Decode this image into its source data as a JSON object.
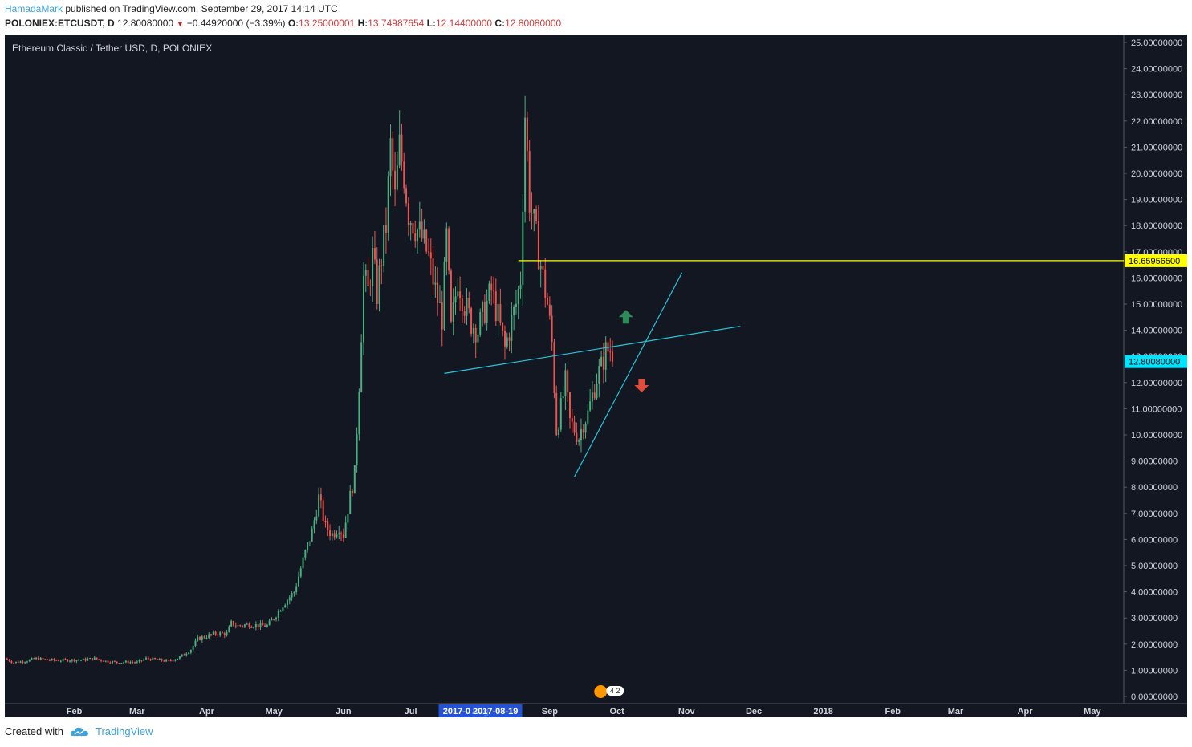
{
  "header": {
    "author": "HamadaMark",
    "published_text": "published on TradingView.com, September 29, 2017 14:14 UTC",
    "symbol": "POLONIEX:ETCUSDT, D",
    "last": "12.80080000",
    "change": "−0.44920000 (−3.39%)",
    "o_label": "O:",
    "o_value": "13.25000001",
    "h_label": "H:",
    "h_value": "13.74987654",
    "l_label": "L:",
    "l_value": "12.14400000",
    "c_label": "C:",
    "c_value": "12.80080000",
    "down_icon": "triangle-down-icon"
  },
  "footer": {
    "created_with": "Created with",
    "brand": "TradingView",
    "logo_icon": "tradingview-cloud-icon"
  },
  "chart_data": {
    "type": "candlestick",
    "title": "Ethereum Classic / Tether USD, D, POLONIEX",
    "ylim": [
      0,
      25
    ],
    "y_ticks": [
      "25.00000000",
      "24.00000000",
      "23.00000000",
      "22.00000000",
      "21.00000000",
      "20.00000000",
      "19.00000000",
      "18.00000000",
      "17.00000000",
      "16.00000000",
      "15.00000000",
      "14.00000000",
      "13.00000000",
      "12.00000000",
      "11.00000000",
      "10.00000000",
      "9.00000000",
      "8.00000000",
      "7.00000000",
      "6.00000000",
      "5.00000000",
      "4.00000000",
      "3.00000000",
      "2.00000000",
      "1.00000000",
      "0.00000000"
    ],
    "x_ticks": [
      "Feb",
      "Mar",
      "Apr",
      "May",
      "Jun",
      "Jul",
      "Aug",
      "Sep",
      "Oct",
      "Nov",
      "Dec",
      "2018",
      "Feb",
      "Mar",
      "Apr",
      "May"
    ],
    "x_tick_dates": [
      "2017-02-01",
      "2017-03-01",
      "2017-04-01",
      "2017-05-01",
      "2017-06-01",
      "2017-07-01",
      "2017-08-01",
      "2017-09-01",
      "2017-10-01",
      "2017-11-01",
      "2017-12-01",
      "2018-01-01",
      "2018-02-01",
      "2018-03-01",
      "2018-04-01",
      "2018-05-01"
    ],
    "x_start": "2017-01-01",
    "x_end": "2018-05-15",
    "crosshair_label": "2017-0   2017-08-19",
    "price_labels": [
      {
        "value": 16.659565,
        "text": "16.65956500",
        "color": "#ffff00"
      },
      {
        "value": 12.8008,
        "text": "12.80080000",
        "color": "#00e5ff"
      }
    ],
    "grid": false,
    "up_color": "#4caf80",
    "down_color": "#ef5350",
    "series": [
      {
        "name": "ETCUSDT",
        "points": [
          [
            "2017-01-01",
            1.45
          ],
          [
            "2017-01-05",
            1.3
          ],
          [
            "2017-01-10",
            1.35
          ],
          [
            "2017-01-15",
            1.45
          ],
          [
            "2017-01-20",
            1.4
          ],
          [
            "2017-01-25",
            1.38
          ],
          [
            "2017-02-01",
            1.4
          ],
          [
            "2017-02-05",
            1.4
          ],
          [
            "2017-02-10",
            1.45
          ],
          [
            "2017-02-15",
            1.35
          ],
          [
            "2017-02-20",
            1.3
          ],
          [
            "2017-02-25",
            1.32
          ],
          [
            "2017-03-01",
            1.3
          ],
          [
            "2017-03-05",
            1.45
          ],
          [
            "2017-03-10",
            1.4
          ],
          [
            "2017-03-15",
            1.35
          ],
          [
            "2017-03-20",
            1.5
          ],
          [
            "2017-03-25",
            1.8
          ],
          [
            "2017-03-28",
            2.2
          ],
          [
            "2017-04-01",
            2.3
          ],
          [
            "2017-04-05",
            2.4
          ],
          [
            "2017-04-10",
            2.4
          ],
          [
            "2017-04-12",
            2.8
          ],
          [
            "2017-04-15",
            2.7
          ],
          [
            "2017-04-20",
            2.75
          ],
          [
            "2017-04-25",
            2.7
          ],
          [
            "2017-04-28",
            2.7
          ],
          [
            "2017-05-01",
            3.0
          ],
          [
            "2017-05-05",
            3.5
          ],
          [
            "2017-05-10",
            4.0
          ],
          [
            "2017-05-15",
            5.5
          ],
          [
            "2017-05-18",
            6.3
          ],
          [
            "2017-05-21",
            7.6
          ],
          [
            "2017-05-24",
            6.5
          ],
          [
            "2017-05-27",
            6.2
          ],
          [
            "2017-05-30",
            6.5
          ],
          [
            "2017-06-01",
            6.2
          ],
          [
            "2017-06-03",
            7.2
          ],
          [
            "2017-06-06",
            8.5
          ],
          [
            "2017-06-08",
            12.0
          ],
          [
            "2017-06-10",
            16.0
          ],
          [
            "2017-06-12",
            15.5
          ],
          [
            "2017-06-14",
            16.8
          ],
          [
            "2017-06-16",
            15.4
          ],
          [
            "2017-06-18",
            16.8
          ],
          [
            "2017-06-20",
            18.0
          ],
          [
            "2017-06-22",
            21.0
          ],
          [
            "2017-06-24",
            19.0
          ],
          [
            "2017-06-26",
            21.0
          ],
          [
            "2017-06-28",
            20.0
          ],
          [
            "2017-06-30",
            18.5
          ],
          [
            "2017-07-03",
            18.0
          ],
          [
            "2017-07-06",
            17.5
          ],
          [
            "2017-07-09",
            16.8
          ],
          [
            "2017-07-12",
            15.5
          ],
          [
            "2017-07-15",
            14.5
          ],
          [
            "2017-07-17",
            17.5
          ],
          [
            "2017-07-19",
            14.0
          ],
          [
            "2017-07-22",
            16.0
          ],
          [
            "2017-07-25",
            15.0
          ],
          [
            "2017-07-28",
            14.3
          ],
          [
            "2017-07-31",
            14.0
          ],
          [
            "2017-08-03",
            14.8
          ],
          [
            "2017-08-06",
            15.5
          ],
          [
            "2017-08-09",
            14.5
          ],
          [
            "2017-08-12",
            13.3
          ],
          [
            "2017-08-14",
            14.0
          ],
          [
            "2017-08-17",
            15.0
          ],
          [
            "2017-08-19",
            16.0
          ],
          [
            "2017-08-21",
            22.3
          ],
          [
            "2017-08-23",
            19.0
          ],
          [
            "2017-08-26",
            17.5
          ],
          [
            "2017-08-28",
            16.5
          ],
          [
            "2017-08-31",
            15.0
          ],
          [
            "2017-09-02",
            13.5
          ],
          [
            "2017-09-04",
            10.2
          ],
          [
            "2017-09-06",
            11.0
          ],
          [
            "2017-09-08",
            12.0
          ],
          [
            "2017-09-10",
            10.5
          ],
          [
            "2017-09-14",
            9.9
          ],
          [
            "2017-09-16",
            10.5
          ],
          [
            "2017-09-18",
            10.8
          ],
          [
            "2017-09-20",
            11.5
          ],
          [
            "2017-09-22",
            12.2
          ],
          [
            "2017-09-24",
            12.6
          ],
          [
            "2017-09-26",
            13.2
          ],
          [
            "2017-09-28",
            13.25
          ],
          [
            "2017-09-29",
            12.8008
          ]
        ]
      }
    ],
    "trendlines": [
      {
        "from": [
          "2017-07-16",
          12.35
        ],
        "to": [
          "2017-11-25",
          14.15
        ],
        "color": "#26c6da"
      },
      {
        "from": [
          "2017-09-12",
          8.4
        ],
        "to": [
          "2017-10-30",
          16.2
        ],
        "color": "#26c6da"
      },
      {
        "from": [
          "2017-08-18",
          16.659565
        ],
        "to": [
          "2018-05-15",
          16.659565
        ],
        "color": "#ffff00"
      }
    ],
    "annotations": [
      {
        "type": "arrow-up",
        "at": [
          "2017-10-05",
          14.5
        ],
        "color": "#2e8b57"
      },
      {
        "type": "arrow-down",
        "at": [
          "2017-10-12",
          11.9
        ],
        "color": "#e04b3a"
      }
    ],
    "event_badge": {
      "text": "4 2",
      "at": "2017-09-28"
    }
  }
}
